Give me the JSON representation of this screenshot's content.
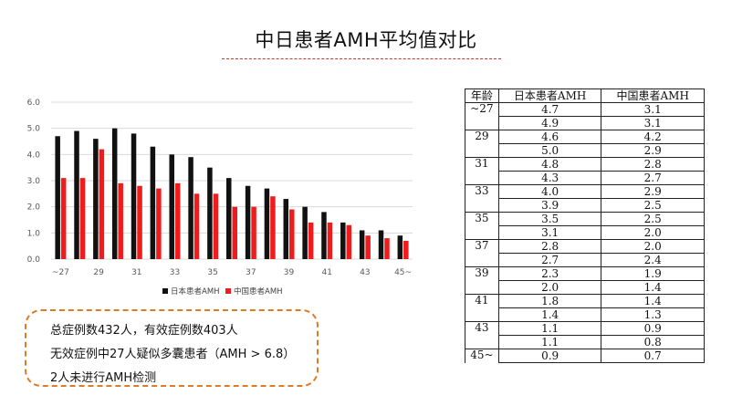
{
  "page": {
    "title": "中日患者AMH平均值对比"
  },
  "chart_data": {
    "type": "bar",
    "categories": [
      "~27",
      "",
      "29",
      "",
      "31",
      "",
      "33",
      "",
      "35",
      "",
      "37",
      "",
      "39",
      "",
      "41",
      "",
      "43",
      "",
      "45~"
    ],
    "series": [
      {
        "name": "日本患者AMH",
        "color": "#111111",
        "values": [
          4.7,
          4.9,
          4.6,
          5.0,
          4.8,
          4.3,
          4.0,
          3.9,
          3.5,
          3.1,
          2.8,
          2.7,
          2.3,
          2.0,
          1.8,
          1.4,
          1.1,
          1.1,
          0.9
        ]
      },
      {
        "name": "中国患者AMH",
        "color": "#ee1c1c",
        "values": [
          3.1,
          3.1,
          4.2,
          2.9,
          2.8,
          2.7,
          2.9,
          2.5,
          2.5,
          2.0,
          2.0,
          2.4,
          1.9,
          1.4,
          1.4,
          1.3,
          0.9,
          0.8,
          0.7
        ]
      }
    ],
    "ylim": [
      0,
      6
    ],
    "yticks": [
      "0.0",
      "1.0",
      "2.0",
      "3.0",
      "4.0",
      "5.0",
      "6.0"
    ],
    "grid": true,
    "legend": "bottom"
  },
  "table": {
    "headers": [
      "年龄",
      "日本患者AMH",
      "中国患者AMH"
    ],
    "rows": [
      [
        "~27",
        "4.7",
        "3.1"
      ],
      [
        "",
        "4.9",
        "3.1"
      ],
      [
        "29",
        "4.6",
        "4.2"
      ],
      [
        "",
        "5.0",
        "2.9"
      ],
      [
        "31",
        "4.8",
        "2.8"
      ],
      [
        "",
        "4.3",
        "2.7"
      ],
      [
        "33",
        "4.0",
        "2.9"
      ],
      [
        "",
        "3.9",
        "2.5"
      ],
      [
        "35",
        "3.5",
        "2.5"
      ],
      [
        "",
        "3.1",
        "2.0"
      ],
      [
        "37",
        "2.8",
        "2.0"
      ],
      [
        "",
        "2.7",
        "2.4"
      ],
      [
        "39",
        "2.3",
        "1.9"
      ],
      [
        "",
        "2.0",
        "1.4"
      ],
      [
        "41",
        "1.8",
        "1.4"
      ],
      [
        "",
        "1.4",
        "1.3"
      ],
      [
        "43",
        "1.1",
        "0.9"
      ],
      [
        "",
        "1.1",
        "0.8"
      ],
      [
        "45~",
        "0.9",
        "0.7"
      ]
    ]
  },
  "note": {
    "lines": [
      "总症例数432人，有效症例数403人",
      "无效症例中27人疑似多囊患者（AMH > 6.8）",
      "2人未进行AMH检测"
    ],
    "border_color": "#e07b25"
  },
  "colors": {
    "title_rule": "#c0392b"
  }
}
